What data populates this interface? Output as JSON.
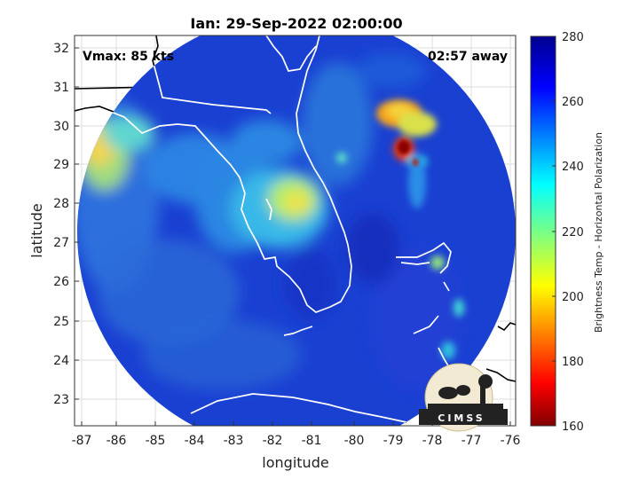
{
  "map": {
    "title": "Ian: 29-Sep-2022 02:00:00",
    "xlabel": "longitude",
    "ylabel": "latitude",
    "lon_range": [
      -87.2,
      -75.9
    ],
    "lat_range": [
      22.3,
      32.4
    ],
    "lon_ticks": [
      "-87",
      "-86",
      "-85",
      "-84",
      "-83",
      "-82",
      "-81",
      "-80",
      "-79",
      "-78",
      "-77",
      "-76"
    ],
    "lat_ticks": [
      "32",
      "31",
      "30",
      "29",
      "28",
      "27",
      "26",
      "25",
      "24",
      "23"
    ],
    "vmax_text": "Vmax: 85 kts",
    "away_text": "02:57 away",
    "grid": true
  },
  "colorbar": {
    "label": "Brightness Temp - Horizontal Polarization",
    "range": [
      160,
      280
    ],
    "ticks": [
      "280",
      "260",
      "240",
      "220",
      "200",
      "180",
      "160"
    ],
    "colormap": "jet"
  },
  "logo": {
    "text": "CIMSS"
  },
  "colors": {
    "background_swath": "#1a3fd0",
    "warm_core": "#8b0000",
    "coastline": "#ffffff",
    "outside_coast": "#000000"
  }
}
